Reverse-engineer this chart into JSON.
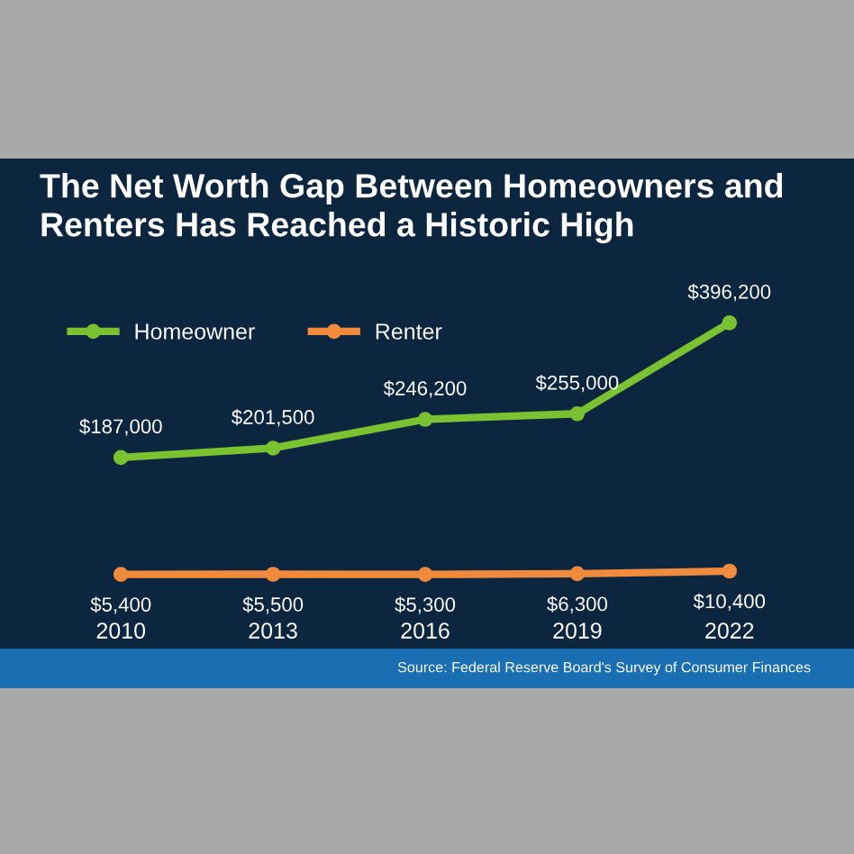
{
  "chart_data": {
    "type": "line",
    "title": "The Net Worth Gap Between Homeowners and Renters Has Reached a Historic High",
    "categories": [
      "2010",
      "2013",
      "2016",
      "2019",
      "2022"
    ],
    "series": [
      {
        "name": "Homeowner",
        "color": "#7ac230",
        "values": [
          187000,
          201500,
          246200,
          255000,
          396200
        ],
        "value_labels": [
          "$187,000",
          "$201,500",
          "$246,200",
          "$255,000",
          "$396,200"
        ]
      },
      {
        "name": "Renter",
        "color": "#f08a3c",
        "values": [
          5400,
          5500,
          5300,
          6300,
          10400
        ],
        "value_labels": [
          "$5,400",
          "$5,500",
          "$5,300",
          "$6,300",
          "$10,400"
        ]
      }
    ],
    "marker": "circle",
    "line_style": "solid",
    "legend": "top left",
    "grid": false,
    "annotations": [
      "Source: Federal Reserve Board's Survey of Consumer Finances"
    ]
  }
}
